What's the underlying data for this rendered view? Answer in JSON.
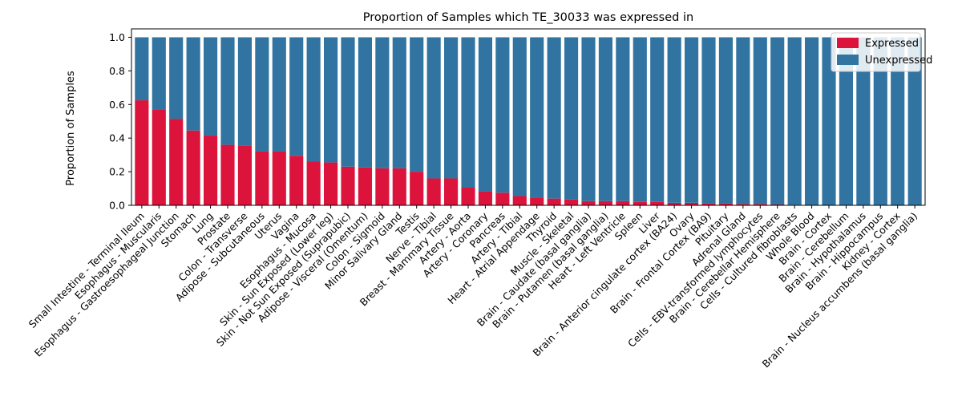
{
  "chart_data": {
    "type": "bar",
    "stacked": true,
    "title": "Proportion of Samples which TE_30033 was expressed in",
    "xlabel": "",
    "ylabel": "Proportion of Samples",
    "ylim": [
      0,
      1.05
    ],
    "yticks": [
      "0.0",
      "0.2",
      "0.4",
      "0.6",
      "0.8",
      "1.0"
    ],
    "grid": false,
    "legend_position": "top-right",
    "categories": [
      "Small Intestine - Terminal Ileum",
      "Esophagus - Muscularis",
      "Esophagus - Gastroesophageal Junction",
      "Stomach",
      "Lung",
      "Prostate",
      "Colon - Transverse",
      "Adipose - Subcutaneous",
      "Uterus",
      "Vagina",
      "Esophagus - Mucosa",
      "Skin - Sun Exposed (Lower leg)",
      "Skin - Not Sun Exposed (Suprapubic)",
      "Adipose - Visceral (Omentum)",
      "Colon - Sigmoid",
      "Minor Salivary Gland",
      "Testis",
      "Nerve - Tibial",
      "Breast - Mammary Tissue",
      "Artery - Aorta",
      "Artery - Coronary",
      "Pancreas",
      "Artery - Tibial",
      "Heart - Atrial Appendage",
      "Thyroid",
      "Muscle - Skeletal",
      "Brain - Caudate (basal ganglia)",
      "Brain - Putamen (basal ganglia)",
      "Heart - Left Ventricle",
      "Spleen",
      "Liver",
      "Brain - Anterior cingulate cortex (BA24)",
      "Ovary",
      "Brain - Frontal Cortex (BA9)",
      "Pituitary",
      "Adrenal Gland",
      "Cells - EBV-transformed lymphocytes",
      "Brain - Cerebellar Hemisphere",
      "Cells - Cultured fibroblasts",
      "Whole Blood",
      "Brain - Cortex",
      "Brain - Cerebellum",
      "Brain - Hypothalamus",
      "Brain - Hippocampus",
      "Kidney - Cortex",
      "Brain - Nucleus accumbens (basal ganglia)"
    ],
    "series": [
      {
        "name": "Expressed",
        "color": "#dc143c",
        "values": [
          0.625,
          0.57,
          0.515,
          0.445,
          0.415,
          0.36,
          0.355,
          0.32,
          0.32,
          0.295,
          0.26,
          0.255,
          0.23,
          0.225,
          0.22,
          0.22,
          0.2,
          0.16,
          0.16,
          0.105,
          0.085,
          0.075,
          0.055,
          0.045,
          0.04,
          0.035,
          0.025,
          0.025,
          0.025,
          0.02,
          0.02,
          0.015,
          0.015,
          0.01,
          0.01,
          0.008,
          0.008,
          0.005,
          0.003,
          0,
          0,
          0,
          0,
          0,
          0,
          0
        ]
      },
      {
        "name": "Unexpressed",
        "color": "#3274a1",
        "values": [
          0.375,
          0.43,
          0.485,
          0.555,
          0.585,
          0.64,
          0.645,
          0.68,
          0.68,
          0.705,
          0.74,
          0.745,
          0.77,
          0.775,
          0.78,
          0.78,
          0.8,
          0.84,
          0.84,
          0.895,
          0.915,
          0.925,
          0.945,
          0.955,
          0.96,
          0.965,
          0.975,
          0.975,
          0.975,
          0.98,
          0.98,
          0.985,
          0.985,
          0.99,
          0.99,
          0.992,
          0.992,
          0.995,
          0.997,
          1,
          1,
          1,
          1,
          1,
          1,
          1
        ]
      }
    ]
  }
}
